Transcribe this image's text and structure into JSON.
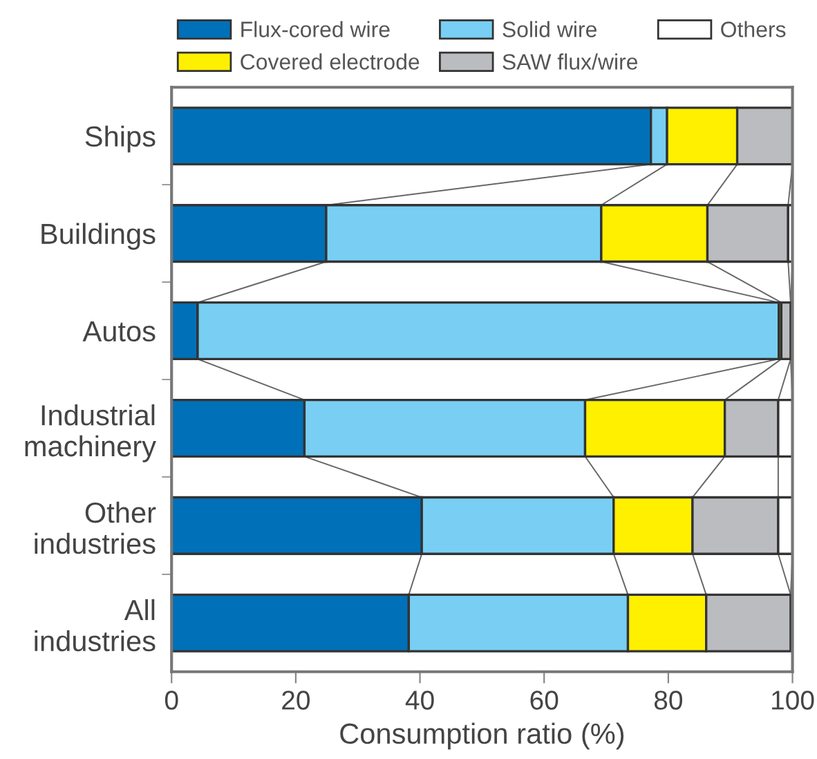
{
  "chart_data": {
    "type": "bar",
    "orientation": "horizontal",
    "stacked": true,
    "xlabel": "Consumption ratio (%)",
    "categories": [
      "Ships",
      "Buildings",
      "Autos",
      "Industrial\nmachinery",
      "Other\nindustries",
      "All\nindustries"
    ],
    "series": [
      {
        "name": "Flux-cored wire",
        "color": "#0070b8",
        "values": [
          77.2,
          24.9,
          4.2,
          21.4,
          40.3,
          38.2
        ]
      },
      {
        "name": "Solid wire",
        "color": "#78cff3",
        "values": [
          2.6,
          44.3,
          93.6,
          45.2,
          30.9,
          35.3
        ]
      },
      {
        "name": "Covered electrode",
        "color": "#fff000",
        "values": [
          11.3,
          17.1,
          0.4,
          22.5,
          12.7,
          12.6
        ]
      },
      {
        "name": "SAW flux/wire",
        "color": "#bbbcc0",
        "values": [
          8.9,
          13.0,
          1.5,
          8.6,
          13.8,
          13.6
        ]
      },
      {
        "name": "Others",
        "color": "#ffffff",
        "values": [
          0,
          0.7,
          null,
          2.3,
          2.3,
          null
        ]
      }
    ],
    "xlim": [
      0,
      100
    ],
    "xticks": [
      0,
      20,
      40,
      60,
      80,
      100
    ],
    "legend": "top",
    "grid": false
  }
}
